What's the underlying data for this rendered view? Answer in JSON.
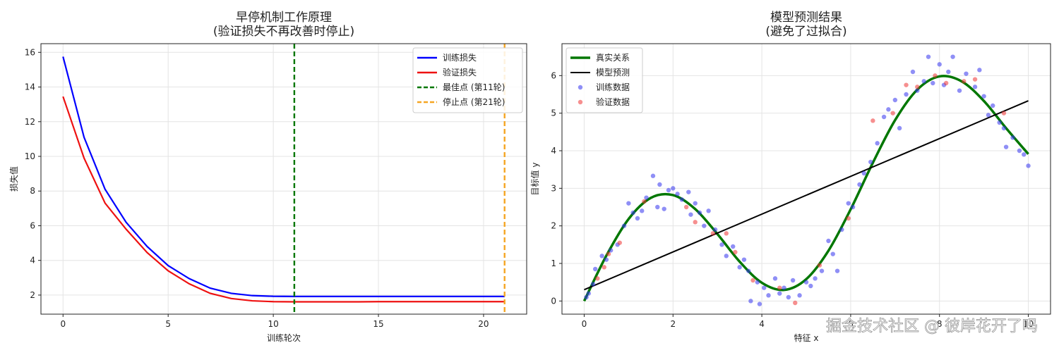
{
  "chart_data": [
    {
      "type": "line",
      "title": "早停机制工作原理\n(验证损失不再改善时停止)",
      "xlabel": "训练轮次",
      "ylabel": "损失值",
      "x": [
        0,
        1,
        2,
        3,
        4,
        5,
        6,
        7,
        8,
        9,
        10,
        11,
        12,
        13,
        14,
        15,
        16,
        17,
        18,
        19,
        20,
        21
      ],
      "series": [
        {
          "name": "训练损失",
          "color": "#0000ff",
          "values": [
            15.75,
            11.1,
            8.1,
            6.2,
            4.8,
            3.7,
            2.95,
            2.4,
            2.1,
            1.97,
            1.93,
            1.92,
            1.92,
            1.92,
            1.92,
            1.92,
            1.92,
            1.92,
            1.92,
            1.92,
            1.92,
            1.92
          ]
        },
        {
          "name": "验证损失",
          "color": "#ee1111",
          "values": [
            13.45,
            9.9,
            7.3,
            5.8,
            4.45,
            3.4,
            2.65,
            2.1,
            1.8,
            1.67,
            1.62,
            1.61,
            1.61,
            1.61,
            1.61,
            1.62,
            1.62,
            1.62,
            1.62,
            1.62,
            1.62,
            1.62
          ]
        }
      ],
      "vlines": [
        {
          "name": "最佳点 (第11轮)",
          "color": "#007700",
          "x": 11
        },
        {
          "name": "停止点 (第21轮)",
          "color": "#f5a623",
          "x": 21
        }
      ],
      "xlim": [
        -1.05,
        22.05
      ],
      "ylim": [
        0.9,
        16.5
      ],
      "xticks": [
        0,
        5,
        10,
        15,
        20
      ],
      "yticks": [
        2,
        4,
        6,
        8,
        10,
        12,
        14,
        16
      ],
      "grid": true,
      "legend": "upper-right"
    },
    {
      "type": "scatter",
      "title": "模型预测结果\n(避免了过拟合)",
      "xlabel": "特征 x",
      "ylabel": "目标值 y",
      "series": [
        {
          "name": "真实关系",
          "kind": "line",
          "color": "#007700",
          "width": 3.5,
          "x": [
            0,
            0.5,
            1,
            1.5,
            2,
            2.5,
            3,
            3.5,
            4,
            4.5,
            5,
            5.5,
            6,
            6.5,
            7,
            7.5,
            8,
            8.5,
            9,
            9.5,
            10
          ],
          "values": [
            0,
            1.209,
            2.183,
            2.745,
            2.819,
            2.447,
            1.782,
            1.048,
            0.486,
            0.295,
            0.582,
            1.339,
            2.441,
            3.68,
            4.814,
            5.626,
            5.979,
            5.846,
            5.324,
            4.6,
            3.912
          ]
        },
        {
          "name": "模型预测",
          "kind": "line",
          "color": "#000000",
          "width": 2,
          "x": [
            0,
            10
          ],
          "values": [
            0.3,
            5.33
          ]
        },
        {
          "name": "训练数据",
          "kind": "scatter",
          "color": "#3333ee",
          "x": [
            0.05,
            0.1,
            0.2,
            0.25,
            0.4,
            0.5,
            0.6,
            0.75,
            0.9,
            1.0,
            1.1,
            1.2,
            1.3,
            1.4,
            1.55,
            1.65,
            1.7,
            1.8,
            1.9,
            2.0,
            2.1,
            2.2,
            2.35,
            2.4,
            2.5,
            2.6,
            2.7,
            2.8,
            2.95,
            3.1,
            3.2,
            3.35,
            3.5,
            3.6,
            3.7,
            3.75,
            3.9,
            3.95,
            4.05,
            4.15,
            4.3,
            4.4,
            4.5,
            4.6,
            4.7,
            4.85,
            5.0,
            5.1,
            5.2,
            5.35,
            5.5,
            5.6,
            5.7,
            5.8,
            5.95,
            6.05,
            6.2,
            6.3,
            6.45,
            6.6,
            6.75,
            6.85,
            7.0,
            7.1,
            7.25,
            7.4,
            7.5,
            7.65,
            7.75,
            7.85,
            8.0,
            8.1,
            8.2,
            8.3,
            8.45,
            8.6,
            8.8,
            8.9,
            9.0,
            9.1,
            9.2,
            9.35,
            9.45,
            9.5,
            9.65,
            9.8,
            9.9,
            10.0
          ],
          "values": [
            0.1,
            0.2,
            0.45,
            0.85,
            1.2,
            1.1,
            1.35,
            1.5,
            2.0,
            2.6,
            2.35,
            2.2,
            2.4,
            2.75,
            3.33,
            2.5,
            3.1,
            2.45,
            2.95,
            3.0,
            2.85,
            2.7,
            2.9,
            2.3,
            2.6,
            2.35,
            2.0,
            2.4,
            1.9,
            1.5,
            1.2,
            1.45,
            0.9,
            1.1,
            0.8,
            0.0,
            0.5,
            -0.08,
            0.35,
            0.15,
            0.6,
            0.2,
            0.35,
            0.1,
            0.55,
            0.15,
            0.5,
            0.4,
            0.6,
            0.8,
            1.6,
            1.25,
            0.8,
            1.9,
            2.6,
            2.5,
            3.1,
            3.4,
            3.7,
            4.2,
            4.9,
            5.1,
            5.35,
            4.6,
            5.5,
            6.1,
            5.6,
            5.85,
            6.5,
            5.8,
            6.3,
            5.75,
            6.1,
            6.5,
            5.6,
            6.05,
            5.7,
            6.15,
            5.45,
            4.95,
            5.2,
            4.75,
            4.6,
            4.1,
            4.35,
            4.0,
            3.9,
            3.6
          ]
        },
        {
          "name": "验证数据",
          "kind": "scatter",
          "color": "#ee3333",
          "x": [
            0.3,
            0.45,
            0.55,
            0.8,
            1.35,
            2.3,
            2.5,
            2.9,
            3.2,
            3.4,
            3.8,
            4.4,
            4.75,
            5.3,
            5.95,
            6.5,
            6.95,
            7.25,
            7.5,
            7.9,
            8.15,
            8.55,
            8.8,
            9.45
          ],
          "values": [
            0.6,
            0.9,
            1.25,
            1.55,
            2.65,
            2.5,
            2.1,
            1.8,
            1.8,
            1.3,
            0.55,
            0.35,
            -0.05,
            0.95,
            2.2,
            4.8,
            5.0,
            5.75,
            5.7,
            6.0,
            5.8,
            5.85,
            5.9,
            5.0
          ]
        }
      ],
      "xlim": [
        -0.5,
        10.5
      ],
      "ylim": [
        -0.35,
        6.85
      ],
      "xticks": [
        0,
        2,
        4,
        6,
        8,
        10
      ],
      "yticks": [
        0,
        1,
        2,
        3,
        4,
        5,
        6
      ],
      "grid": true,
      "legend": "upper-left"
    }
  ],
  "watermark": "掘金技术社区 @ 彼岸花开了吗"
}
